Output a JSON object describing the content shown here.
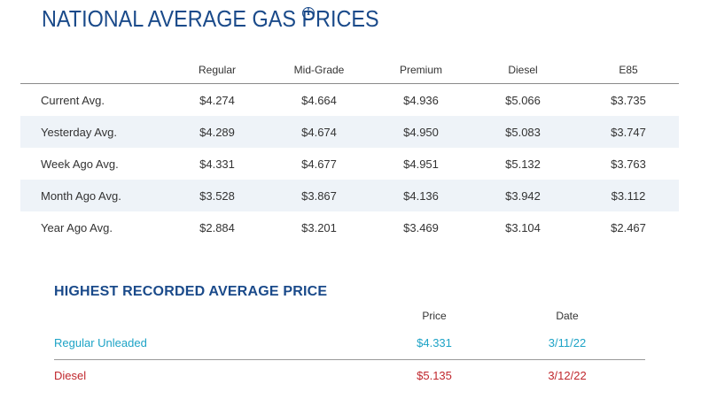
{
  "title": "NATIONAL AVERAGE GAS PRICES",
  "info_icon": "info-circle-icon",
  "prices": {
    "columns": [
      "Regular",
      "Mid-Grade",
      "Premium",
      "Diesel",
      "E85"
    ],
    "rows": [
      {
        "label": "Current Avg.",
        "values": [
          "$4.274",
          "$4.664",
          "$4.936",
          "$5.066",
          "$3.735"
        ]
      },
      {
        "label": "Yesterday Avg.",
        "values": [
          "$4.289",
          "$4.674",
          "$4.950",
          "$5.083",
          "$3.747"
        ]
      },
      {
        "label": "Week Ago Avg.",
        "values": [
          "$4.331",
          "$4.677",
          "$4.951",
          "$5.132",
          "$3.763"
        ]
      },
      {
        "label": "Month Ago Avg.",
        "values": [
          "$3.528",
          "$3.867",
          "$4.136",
          "$3.942",
          "$3.112"
        ]
      },
      {
        "label": "Year Ago Avg.",
        "values": [
          "$2.884",
          "$3.201",
          "$3.469",
          "$3.104",
          "$2.467"
        ]
      }
    ]
  },
  "record": {
    "title": "HIGHEST RECORDED AVERAGE PRICE",
    "columns": [
      "Price",
      "Date"
    ],
    "rows": [
      {
        "label": "Regular Unleaded",
        "price": "$4.331",
        "date": "3/11/22",
        "color": "#1da3c6"
      },
      {
        "label": "Diesel",
        "price": "$5.135",
        "date": "3/12/22",
        "color": "#c0272d"
      }
    ]
  }
}
